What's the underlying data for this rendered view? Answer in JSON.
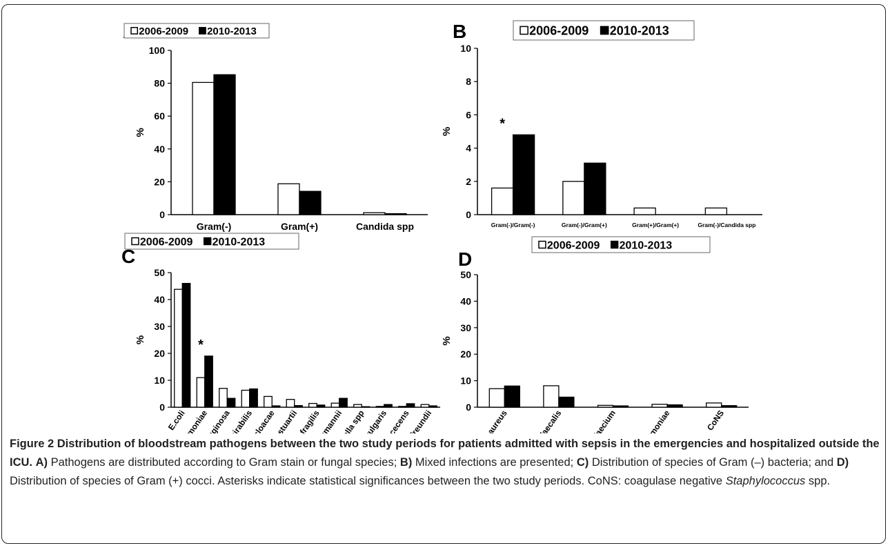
{
  "chart_data": [
    {
      "panel": "A",
      "type": "bar",
      "ylabel": "%",
      "ylim": [
        0,
        100
      ],
      "yticks": [
        0,
        20,
        40,
        60,
        80,
        100
      ],
      "categories": [
        "Gram(-)",
        "Gram(+)",
        "Candida spp"
      ],
      "series": [
        {
          "name": "2006-2009",
          "values": [
            80.5,
            18.8,
            1.2
          ]
        },
        {
          "name": "2010-2013",
          "values": [
            85.2,
            14.2,
            0.6
          ]
        }
      ],
      "annotations": [],
      "legend": "top-center",
      "grid": false
    },
    {
      "panel": "B",
      "type": "bar",
      "ylabel": "%",
      "ylim": [
        0,
        10
      ],
      "yticks": [
        0,
        2,
        4,
        6,
        8,
        10
      ],
      "categories": [
        "Gram(-)/Gram(-)",
        "Gram(-)/Gram(+)",
        "Gram(+)/Gram(+)",
        "Gram(-)/Candida spp"
      ],
      "series": [
        {
          "name": "2006-2009",
          "values": [
            1.6,
            2.0,
            0.4,
            0.4
          ]
        },
        {
          "name": "2010-2013",
          "values": [
            4.8,
            3.1,
            0,
            0
          ]
        }
      ],
      "annotations": [
        {
          "category": "Gram(-)/Gram(-)",
          "text": "*"
        }
      ],
      "legend": "top-center",
      "grid": false
    },
    {
      "panel": "C",
      "type": "bar",
      "ylabel": "%",
      "ylim": [
        0,
        50
      ],
      "yticks": [
        0,
        10,
        20,
        30,
        40,
        50
      ],
      "categories": [
        "E.coli",
        "K.pneumoniae",
        "P.aeruginosa",
        "P.mirabilis",
        "E.cloacae",
        "P.stuartii",
        "B.fragilis",
        "A.baumannii",
        "Salmonella spp",
        "P.vulgaris",
        "S.marcecens",
        "C.freundii"
      ],
      "series": [
        {
          "name": "2006-2009",
          "values": [
            43.8,
            11.0,
            7.0,
            6.3,
            4.0,
            2.9,
            1.4,
            1.5,
            1.0,
            0.3,
            0.3,
            1.0
          ]
        },
        {
          "name": "2010-2013",
          "values": [
            46.0,
            19.0,
            3.3,
            6.8,
            0.5,
            0.6,
            0.8,
            3.3,
            0.2,
            1.0,
            1.3,
            0.5
          ]
        }
      ],
      "annotations": [
        {
          "category": "K.pneumoniae",
          "text": "*"
        }
      ],
      "legend": "top-center",
      "grid": false
    },
    {
      "panel": "D",
      "type": "bar",
      "ylabel": "%",
      "ylim": [
        0,
        50
      ],
      "yticks": [
        0,
        10,
        20,
        30,
        40,
        50
      ],
      "categories": [
        "S.aureus",
        "E.faecalis",
        "E.faecium",
        "S.pneumoniae",
        "CoNS"
      ],
      "series": [
        {
          "name": "2006-2009",
          "values": [
            7.0,
            8.1,
            0.7,
            1.1,
            1.6
          ]
        },
        {
          "name": "2010-2013",
          "values": [
            8.0,
            3.8,
            0.5,
            0.9,
            0.6
          ]
        }
      ],
      "annotations": [],
      "legend": "top-center",
      "grid": false
    }
  ],
  "caption": {
    "title": "Figure 2 Distribution of bloodstream pathogens between the two study periods for patients admitted with sepsis in the emergencies and hospitalized outside the ICU.",
    "a_label": "A)",
    "a_text": "Pathogens are distributed according to Gram stain or fungal species;",
    "b_label": "B)",
    "b_text": "Mixed infections are presented;",
    "c_label": "C)",
    "c_text": "Distribution of species of Gram (–) bacteria; and",
    "d_label": "D)",
    "d_text": "Distribution of species of Gram (+) cocci. Asterisks indicate statistical significances between the two study periods. CoNS: coagulase negative",
    "staph": "Staphylococcus",
    "spp_end": "spp."
  },
  "colors": {
    "series_1_fill": "#ffffff",
    "series_2_fill": "#000000",
    "stroke": "#000000"
  }
}
